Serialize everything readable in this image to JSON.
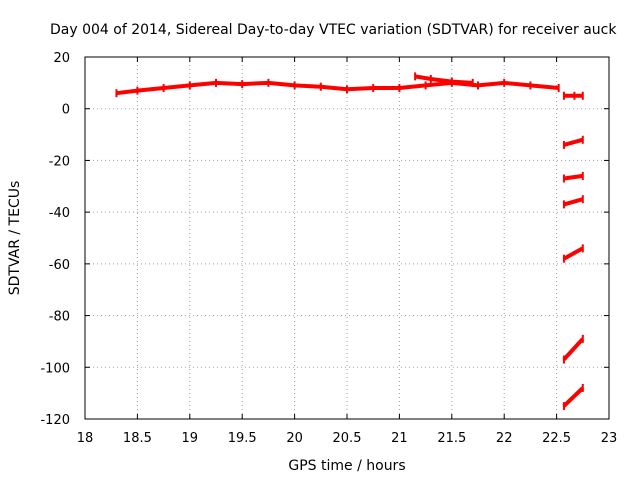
{
  "chart_data": {
    "type": "scatter",
    "title": "Day 004 of 2014, Sidereal Day-to-day VTEC variation (SDTVAR) for receiver auck",
    "xlabel": "GPS time / hours",
    "ylabel": "SDTVAR / TECUs",
    "xlim": [
      18,
      23
    ],
    "ylim": [
      -120,
      20
    ],
    "xticks": [
      "18",
      "18.5",
      "19",
      "19.5",
      "20",
      "20.5",
      "21",
      "21.5",
      "22",
      "22.5",
      "23"
    ],
    "yticks": [
      "20",
      "0",
      "-20",
      "-40",
      "-60",
      "-80",
      "-100",
      "-120"
    ],
    "grid": true,
    "color": "#ff0000",
    "series": [
      {
        "x": [
          18.3,
          18.5,
          18.75,
          19.0,
          19.25,
          19.5,
          19.75,
          20.0,
          20.25,
          20.5,
          20.75,
          21.0,
          21.25,
          21.5,
          21.75,
          22.0,
          22.25,
          22.52
        ],
        "y": [
          6,
          7,
          8,
          9,
          10,
          9.5,
          10,
          9,
          8.5,
          7.5,
          8,
          8,
          9,
          10,
          9,
          10,
          9,
          8
        ]
      },
      {
        "x": [
          21.15,
          21.3,
          21.5,
          21.7
        ],
        "y": [
          12.5,
          11.5,
          10.5,
          10
        ]
      },
      {
        "x": [
          22.57,
          22.67,
          22.75
        ],
        "y": [
          5,
          5,
          5
        ]
      },
      {
        "x": [
          22.57,
          22.75
        ],
        "y": [
          -14,
          -12
        ]
      },
      {
        "x": [
          22.57,
          22.75
        ],
        "y": [
          -27,
          -26
        ]
      },
      {
        "x": [
          22.57,
          22.75
        ],
        "y": [
          -37,
          -35
        ]
      },
      {
        "x": [
          22.57,
          22.75
        ],
        "y": [
          -58,
          -54
        ]
      },
      {
        "x": [
          22.57,
          22.75
        ],
        "y": [
          -97,
          -89
        ]
      },
      {
        "x": [
          22.57,
          22.75
        ],
        "y": [
          -115,
          -108
        ]
      }
    ]
  }
}
